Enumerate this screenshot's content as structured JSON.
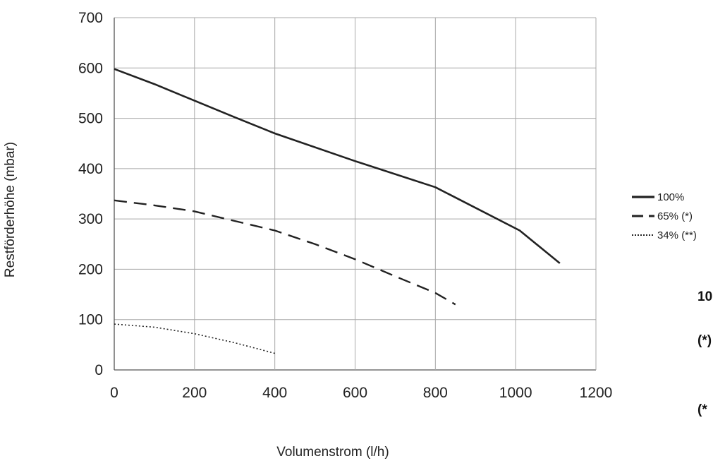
{
  "chart_data": {
    "type": "line",
    "xlabel": "Volumenstrom (l/h)",
    "ylabel": "Restförderhöhe (mbar)",
    "xlim": [
      0,
      1200
    ],
    "ylim": [
      0,
      700
    ],
    "xticks": [
      0,
      200,
      400,
      600,
      800,
      1000,
      1200
    ],
    "yticks": [
      0,
      100,
      200,
      300,
      400,
      500,
      600,
      700
    ],
    "grid": true,
    "legend_position": "right",
    "series": [
      {
        "name": "100%",
        "style": "solid",
        "color": "#222222",
        "points": [
          [
            0,
            598
          ],
          [
            100,
            568
          ],
          [
            200,
            535
          ],
          [
            300,
            502
          ],
          [
            400,
            470
          ],
          [
            600,
            415
          ],
          [
            800,
            363
          ],
          [
            1010,
            277
          ],
          [
            1110,
            212
          ]
        ]
      },
      {
        "name": "65% (*)",
        "style": "dashed",
        "color": "#222222",
        "points": [
          [
            0,
            337
          ],
          [
            100,
            327
          ],
          [
            200,
            315
          ],
          [
            300,
            296
          ],
          [
            400,
            277
          ],
          [
            500,
            250
          ],
          [
            600,
            220
          ],
          [
            700,
            186
          ],
          [
            800,
            153
          ],
          [
            850,
            130
          ]
        ]
      },
      {
        "name": "34% (**)",
        "style": "dotted",
        "color": "#222222",
        "points": [
          [
            0,
            91
          ],
          [
            100,
            85
          ],
          [
            200,
            72
          ],
          [
            300,
            54
          ],
          [
            400,
            33
          ]
        ]
      }
    ],
    "side_notes": [
      "10",
      "(*)",
      "(*"
    ]
  }
}
